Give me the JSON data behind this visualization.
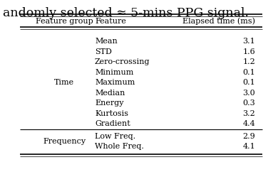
{
  "col_headers": [
    "Feature group",
    "Feature",
    "Elapsed time (ms)"
  ],
  "time_features": [
    "Mean",
    "STD",
    "Zero-crossing",
    "Minimum",
    "Maximum",
    "Median",
    "Energy",
    "Kurtosis",
    "Gradient"
  ],
  "time_values": [
    "3.1",
    "1.6",
    "1.2",
    "0.1",
    "0.1",
    "3.0",
    "0.3",
    "3.2",
    "4.4"
  ],
  "freq_features": [
    "Low Freq.",
    "Whole Freq."
  ],
  "freq_values": [
    "2.9",
    "4.1"
  ],
  "caption": "andomly selected ≈ 5-mins PPG signal.",
  "bg_color": "#ffffff",
  "text_color": "#000000",
  "font_size": 8.0,
  "caption_font_size": 12.5
}
